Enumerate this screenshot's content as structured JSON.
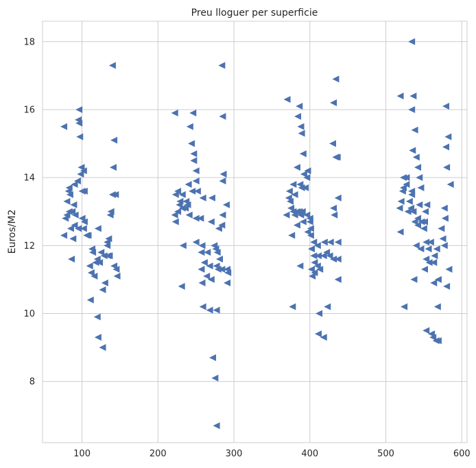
{
  "chart_data": {
    "type": "scatter",
    "title": "Preu lloguer per superficie",
    "xlabel": "",
    "ylabel": "Euros/M2",
    "xlim": [
      48,
      607
    ],
    "ylim": [
      6.2,
      18.6
    ],
    "xticks": [
      100,
      200,
      300,
      400,
      500,
      600
    ],
    "yticks": [
      8,
      10,
      12,
      14,
      16,
      18
    ],
    "grid": true,
    "marker": "triangle-left",
    "marker_color": "#4c72b0",
    "series": [
      {
        "points": [
          [
            76,
            15.5
          ],
          [
            96,
            16
          ],
          [
            95,
            15.7
          ],
          [
            96,
            15.6
          ],
          [
            97,
            15.2
          ],
          [
            99,
            14.3
          ],
          [
            98,
            14.1
          ],
          [
            102,
            14.2
          ],
          [
            94,
            13.9
          ],
          [
            90,
            13.8
          ],
          [
            83,
            13.7
          ],
          [
            82,
            13.6
          ],
          [
            84,
            13.5
          ],
          [
            80,
            13.3
          ],
          [
            100,
            13.6
          ],
          [
            103,
            13.6
          ],
          [
            78,
            12.8
          ],
          [
            76,
            12.3
          ],
          [
            80,
            12.9
          ],
          [
            83,
            13.0
          ],
          [
            87,
            13.0
          ],
          [
            89,
            13.2
          ],
          [
            91,
            12.9
          ],
          [
            85,
            12.5
          ],
          [
            88,
            12.2
          ],
          [
            90,
            12.6
          ],
          [
            95,
            12.5
          ],
          [
            102,
            12.5
          ],
          [
            100,
            12.8
          ],
          [
            103,
            12.7
          ],
          [
            106,
            12.3
          ],
          [
            108,
            12.3
          ],
          [
            86,
            11.6
          ],
          [
            110,
            11.4
          ],
          [
            113,
            11.9
          ],
          [
            114,
            11.8
          ],
          [
            112,
            11.2
          ],
          [
            116,
            11.1
          ],
          [
            118,
            11.5
          ],
          [
            120,
            11.6
          ],
          [
            123,
            11.5
          ],
          [
            125,
            11.8
          ],
          [
            121,
            12.5
          ],
          [
            129,
            11.7
          ],
          [
            130,
            10.9
          ],
          [
            127,
            10.7
          ],
          [
            111,
            10.4
          ],
          [
            120,
            9.9
          ],
          [
            121,
            9.3
          ],
          [
            127,
            9.0
          ],
          [
            140,
            17.3
          ],
          [
            142,
            15.1
          ],
          [
            141,
            14.3
          ],
          [
            140,
            13.5
          ],
          [
            144,
            13.5
          ],
          [
            138,
            13.0
          ],
          [
            137,
            12.9
          ],
          [
            135,
            12.2
          ],
          [
            133,
            12.1
          ],
          [
            136,
            11.7
          ],
          [
            142,
            11.4
          ],
          [
            145,
            11.3
          ],
          [
            146,
            11.1
          ],
          [
            134,
            11.7
          ],
          [
            133,
            12.0
          ],
          [
            222,
            15.9
          ],
          [
            246,
            15.9
          ],
          [
            242,
            15.5
          ],
          [
            244,
            15.0
          ],
          [
            247,
            14.7
          ],
          [
            247,
            14.5
          ],
          [
            250,
            14.2
          ],
          [
            240,
            13.8
          ],
          [
            250,
            13.9
          ],
          [
            226,
            13.6
          ],
          [
            223,
            13.5
          ],
          [
            232,
            13.5
          ],
          [
            229,
            13.3
          ],
          [
            237,
            13.3
          ],
          [
            228,
            13.2
          ],
          [
            232,
            13.1
          ],
          [
            226,
            13.0
          ],
          [
            239,
            13.2
          ],
          [
            245,
            13.6
          ],
          [
            252,
            13.6
          ],
          [
            222,
            12.9
          ],
          [
            223,
            12.7
          ],
          [
            236,
            13.1
          ],
          [
            241,
            12.9
          ],
          [
            250,
            12.8
          ],
          [
            256,
            12.8
          ],
          [
            259,
            13.4
          ],
          [
            271,
            13.4
          ],
          [
            233,
            12.0
          ],
          [
            250,
            12.1
          ],
          [
            258,
            12.0
          ],
          [
            257,
            11.8
          ],
          [
            265,
            11.8
          ],
          [
            261,
            11.5
          ],
          [
            257,
            11.3
          ],
          [
            268,
            11.4
          ],
          [
            264,
            11.1
          ],
          [
            270,
            11.0
          ],
          [
            274,
            12.0
          ],
          [
            276,
            11.9
          ],
          [
            278,
            11.8
          ],
          [
            281,
            11.6
          ],
          [
            277,
            11.4
          ],
          [
            279,
            11.3
          ],
          [
            284,
            11.3
          ],
          [
            270,
            12.7
          ],
          [
            280,
            12.5
          ],
          [
            291,
            11.3
          ],
          [
            292,
            11.2
          ],
          [
            291,
            10.9
          ],
          [
            231,
            10.8
          ],
          [
            259,
            10.2
          ],
          [
            268,
            10.1
          ],
          [
            277,
            10.1
          ],
          [
            272,
            8.7
          ],
          [
            275,
            8.1
          ],
          [
            277,
            6.7
          ],
          [
            284,
            17.3
          ],
          [
            285,
            15.8
          ],
          [
            286,
            14.1
          ],
          [
            285,
            13.9
          ],
          [
            290,
            13.2
          ],
          [
            285,
            12.9
          ],
          [
            284,
            12.6
          ],
          [
            258,
            10.9
          ],
          [
            370,
            16.3
          ],
          [
            386,
            16.1
          ],
          [
            384,
            15.8
          ],
          [
            388,
            15.5
          ],
          [
            389,
            15.3
          ],
          [
            391,
            14.7
          ],
          [
            383,
            14.3
          ],
          [
            392,
            14.1
          ],
          [
            397,
            14.2
          ],
          [
            396,
            14.0
          ],
          [
            378,
            13.8
          ],
          [
            387,
            13.8
          ],
          [
            373,
            13.6
          ],
          [
            380,
            13.5
          ],
          [
            389,
            13.7
          ],
          [
            394,
            13.7
          ],
          [
            372,
            13.4
          ],
          [
            374,
            13.3
          ],
          [
            375,
            13.1
          ],
          [
            378,
            13.0
          ],
          [
            383,
            13.0
          ],
          [
            386,
            13.0
          ],
          [
            390,
            13.0
          ],
          [
            369,
            12.9
          ],
          [
            380,
            12.9
          ],
          [
            388,
            12.9
          ],
          [
            396,
            12.9
          ],
          [
            400,
            12.8
          ],
          [
            383,
            12.6
          ],
          [
            391,
            12.7
          ],
          [
            400,
            12.7
          ],
          [
            376,
            12.3
          ],
          [
            397,
            12.4
          ],
          [
            401,
            12.3
          ],
          [
            405,
            12.1
          ],
          [
            410,
            12.0
          ],
          [
            402,
            11.9
          ],
          [
            419,
            12.1
          ],
          [
            427,
            12.1
          ],
          [
            437,
            12.1
          ],
          [
            422,
            11.8
          ],
          [
            405,
            11.7
          ],
          [
            411,
            11.7
          ],
          [
            418,
            11.7
          ],
          [
            426,
            11.7
          ],
          [
            431,
            11.6
          ],
          [
            437,
            11.6
          ],
          [
            406,
            11.5
          ],
          [
            410,
            11.4
          ],
          [
            402,
            11.3
          ],
          [
            413,
            11.3
          ],
          [
            403,
            11.1
          ],
          [
            387,
            11.4
          ],
          [
            377,
            10.2
          ],
          [
            423,
            10.2
          ],
          [
            437,
            11.0
          ],
          [
            412,
            10.0
          ],
          [
            411,
            9.4
          ],
          [
            418,
            9.3
          ],
          [
            434,
            16.9
          ],
          [
            431,
            16.2
          ],
          [
            430,
            15.0
          ],
          [
            434,
            14.6
          ],
          [
            437,
            13.4
          ],
          [
            431,
            13.1
          ],
          [
            432,
            12.9
          ],
          [
            436,
            14.6
          ],
          [
            401,
            12.5
          ],
          [
            406,
            11.2
          ],
          [
            534,
            18.0
          ],
          [
            519,
            16.4
          ],
          [
            536,
            16.4
          ],
          [
            534,
            16.0
          ],
          [
            538,
            15.4
          ],
          [
            535,
            14.8
          ],
          [
            540,
            14.6
          ],
          [
            542,
            14.3
          ],
          [
            523,
            14.0
          ],
          [
            527,
            14.0
          ],
          [
            544,
            14.0
          ],
          [
            527,
            13.8
          ],
          [
            523,
            13.7
          ],
          [
            522,
            13.6
          ],
          [
            534,
            13.6
          ],
          [
            546,
            13.7
          ],
          [
            534,
            13.5
          ],
          [
            531,
            13.3
          ],
          [
            520,
            13.3
          ],
          [
            533,
            13.1
          ],
          [
            518,
            13.1
          ],
          [
            544,
            13.2
          ],
          [
            529,
            13.0
          ],
          [
            536,
            13.0
          ],
          [
            554,
            13.2
          ],
          [
            552,
            13.0
          ],
          [
            542,
            12.8
          ],
          [
            538,
            12.7
          ],
          [
            547,
            12.7
          ],
          [
            551,
            12.7
          ],
          [
            550,
            12.5
          ],
          [
            542,
            12.6
          ],
          [
            519,
            12.4
          ],
          [
            553,
            12.1
          ],
          [
            559,
            12.1
          ],
          [
            556,
            11.9
          ],
          [
            567,
            11.9
          ],
          [
            564,
            11.7
          ],
          [
            553,
            11.6
          ],
          [
            557,
            11.5
          ],
          [
            563,
            11.5
          ],
          [
            551,
            11.3
          ],
          [
            540,
            12.0
          ],
          [
            546,
            11.9
          ],
          [
            524,
            10.2
          ],
          [
            563,
            10.9
          ],
          [
            569,
            11.0
          ],
          [
            568,
            10.2
          ],
          [
            553,
            9.5
          ],
          [
            560,
            9.4
          ],
          [
            562,
            9.3
          ],
          [
            566,
            9.2
          ],
          [
            569,
            9.2
          ],
          [
            579,
            16.1
          ],
          [
            582,
            15.2
          ],
          [
            579,
            14.9
          ],
          [
            580,
            14.3
          ],
          [
            585,
            13.8
          ],
          [
            577,
            13.1
          ],
          [
            578,
            12.8
          ],
          [
            573,
            12.5
          ],
          [
            575,
            12.2
          ],
          [
            577,
            12.0
          ],
          [
            583,
            11.3
          ],
          [
            580,
            10.8
          ],
          [
            537,
            11.0
          ]
        ]
      }
    ]
  }
}
